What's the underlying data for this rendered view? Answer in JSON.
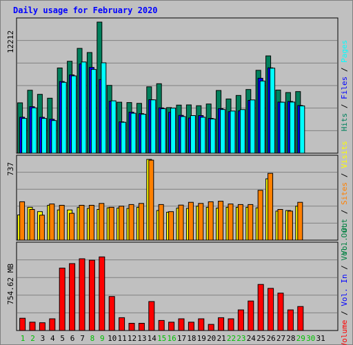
{
  "chart_data": {
    "type": "bar",
    "title": "Daily usage for February 2020",
    "days": [
      "1",
      "2",
      "3",
      "4",
      "5",
      "6",
      "7",
      "8",
      "9",
      "10",
      "11",
      "12",
      "13",
      "14",
      "15",
      "16",
      "17",
      "18",
      "19",
      "20",
      "21",
      "22",
      "23",
      "24",
      "25",
      "26",
      "27",
      "28",
      "29",
      "30",
      "31"
    ],
    "weekend_days": [
      "1",
      "2",
      "8",
      "9",
      "15",
      "16",
      "22",
      "23",
      "29",
      "30"
    ],
    "colors": {
      "hits": "#00805c",
      "files": "#0000ff",
      "pages": "#00ffff",
      "visits": "#ffff00",
      "sites": "#ff8000",
      "kbin": "#008040",
      "kbout": "#0000ff",
      "volume": "#ff0000",
      "weekend": "#00c000"
    },
    "top": {
      "max_label": "12212",
      "ymax": 12212,
      "legend": [
        {
          "key": "hits",
          "text": "Hits"
        },
        {
          "key": "sep",
          "text": " / "
        },
        {
          "key": "files",
          "text": "Files"
        },
        {
          "key": "sep",
          "text": " / "
        },
        {
          "key": "pages",
          "text": "Pages"
        }
      ],
      "series": [
        {
          "name": "Hits",
          "key": "hits",
          "values": [
            4690,
            5860,
            5480,
            5120,
            7940,
            8560,
            9760,
            9380,
            12212,
            6320,
            4750,
            4720,
            4640,
            6180,
            6470,
            4250,
            4480,
            4500,
            4420,
            4580,
            5840,
            5050,
            5380,
            5930,
            7720,
            9060,
            5880,
            5650,
            5740,
            null,
            null
          ]
        },
        {
          "name": "Files",
          "key": "files",
          "values": [
            3350,
            4330,
            3340,
            3160,
            6680,
            7290,
            8310,
            7990,
            6860,
            4840,
            2920,
            3820,
            3680,
            4980,
            4220,
            3810,
            3520,
            3280,
            3500,
            3240,
            4150,
            3870,
            3940,
            4920,
            6980,
            7950,
            4760,
            4820,
            4440,
            null,
            null
          ]
        },
        {
          "name": "Pages",
          "key": "pages",
          "values": [
            3240,
            4220,
            3240,
            3040,
            6600,
            7200,
            8500,
            7800,
            8420,
            4880,
            2880,
            3720,
            3630,
            4970,
            4140,
            4200,
            3410,
            3500,
            3350,
            3190,
            4070,
            3930,
            4060,
            4960,
            6720,
            7920,
            4750,
            4760,
            4400,
            null,
            null
          ]
        }
      ]
    },
    "middle": {
      "max_label": "737",
      "ymax": 737,
      "legend": [
        {
          "key": "kbin",
          "text": "Vol. Out"
        },
        {
          "key": "sep",
          "text": " / "
        },
        {
          "key": "sites",
          "text": "Sites"
        },
        {
          "key": "sep",
          "text": " / "
        },
        {
          "key": "visits",
          "text": "Visits"
        }
      ],
      "series": [
        {
          "name": "Visits",
          "key": "visits",
          "values": [
            230,
            300,
            260,
            318,
            275,
            275,
            298,
            290,
            280,
            295,
            292,
            290,
            300,
            737,
            270,
            255,
            292,
            290,
            310,
            300,
            292,
            300,
            300,
            300,
            295,
            560,
            265,
            270,
            310,
            null,
            null
          ]
        },
        {
          "name": "Sites",
          "key": "sites",
          "values": [
            350,
            280,
            228,
            330,
            318,
            245,
            318,
            318,
            335,
            300,
            310,
            325,
            335,
            730,
            325,
            260,
            320,
            345,
            335,
            350,
            355,
            330,
            325,
            325,
            455,
            610,
            280,
            265,
            345,
            null,
            null
          ]
        }
      ]
    },
    "bottom": {
      "max_label": "754.62 MB",
      "ymax": 754.62,
      "legend": [
        {
          "key": "volume",
          "text": "Volume"
        },
        {
          "key": "sep",
          "text": " / "
        },
        {
          "key": "kbout",
          "text": "Vol. In"
        },
        {
          "key": "sep",
          "text": " / "
        },
        {
          "key": "kbin",
          "text": "Vol. Out"
        }
      ],
      "series": [
        {
          "name": "Volume",
          "key": "volume",
          "values": [
            110,
            75,
            70,
            105,
            560,
            600,
            643,
            630,
            660,
            305,
            115,
            65,
            65,
            260,
            90,
            75,
            105,
            75,
            105,
            55,
            115,
            105,
            185,
            265,
            413,
            378,
            335,
            185,
            215,
            null,
            null
          ]
        }
      ]
    }
  }
}
